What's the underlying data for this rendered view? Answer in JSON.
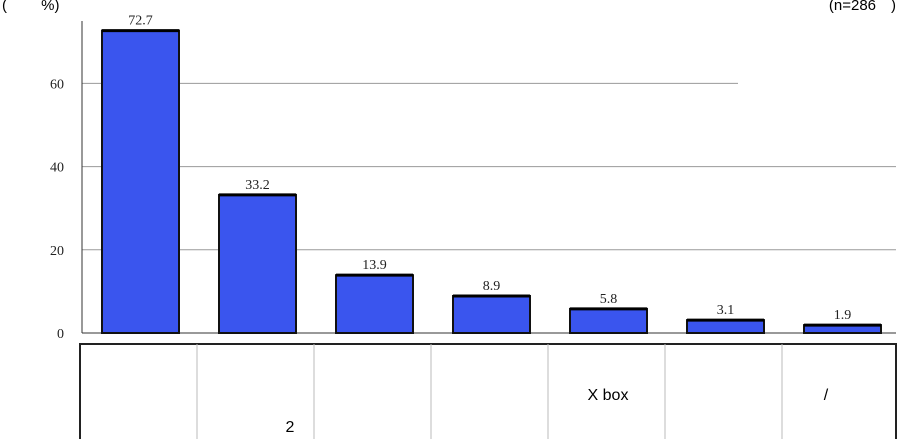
{
  "header": {
    "left_text": "(　　 %)",
    "right_text": "(n=286　)"
  },
  "colors": {
    "bar_fill": "#3a55ee",
    "bar_stroke": "#111111",
    "gridline": "#9a9a9a",
    "table_border": "#222222"
  },
  "chart_data": {
    "type": "bar",
    "categories": [
      "",
      "2",
      "",
      "",
      "X box",
      "",
      "/"
    ],
    "values": [
      72.7,
      33.2,
      13.9,
      8.9,
      5.8,
      3.1,
      1.9
    ],
    "data_labels": [
      "72.7",
      "33.2",
      "13.9",
      "8.9",
      "5.8",
      "3.1",
      "1.9"
    ],
    "y_ticks": [
      0,
      20,
      40,
      60
    ],
    "y_tick_labels": [
      "0",
      "20",
      "40",
      "60"
    ],
    "ylim": [
      0,
      75
    ],
    "grid": true,
    "title": "",
    "xlabel": "",
    "ylabel": ""
  }
}
